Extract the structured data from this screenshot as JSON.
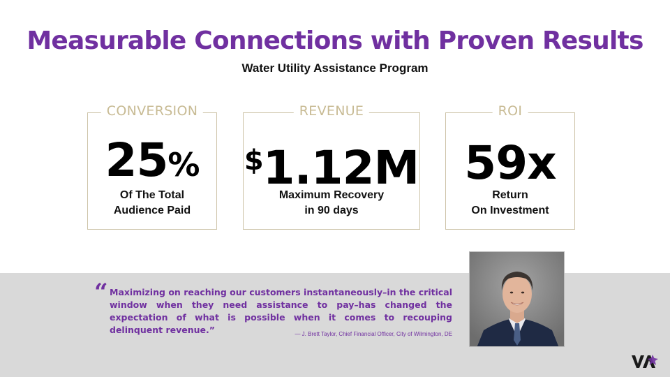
{
  "header": {
    "title": "Measurable Connections with Proven Results",
    "subtitle": "Water Utility Assistance Program"
  },
  "cards": [
    {
      "label": "CONVERSION",
      "value": "25",
      "value_suffix": "%",
      "desc_line1": "Of The Total",
      "desc_line2": "Audience Paid"
    },
    {
      "label": "REVENUE",
      "value_prefix": "$",
      "value": "1.12M",
      "desc_line1": "Maximum Recovery",
      "desc_line2": "in 90 days"
    },
    {
      "label": "ROI",
      "value": "59x",
      "desc_line1": "Return",
      "desc_line2": "On Investment"
    }
  ],
  "quote": {
    "mark": "“",
    "text": "Maximizing on reaching our customers instantaneously–in the critical window when they need assistance to pay–has changed the expectation of what is possible when it comes to recouping delinquent revenue.”",
    "attribution": "— J. Brett Taylor, Chief Financial Officer, City of Wilmington, DE"
  },
  "logo": {
    "text": "VA"
  },
  "colors": {
    "accent_purple": "#7030a0",
    "card_border": "#cdc3a8",
    "label_tan": "#c8bb94",
    "band_gray": "#d9d9d9"
  }
}
